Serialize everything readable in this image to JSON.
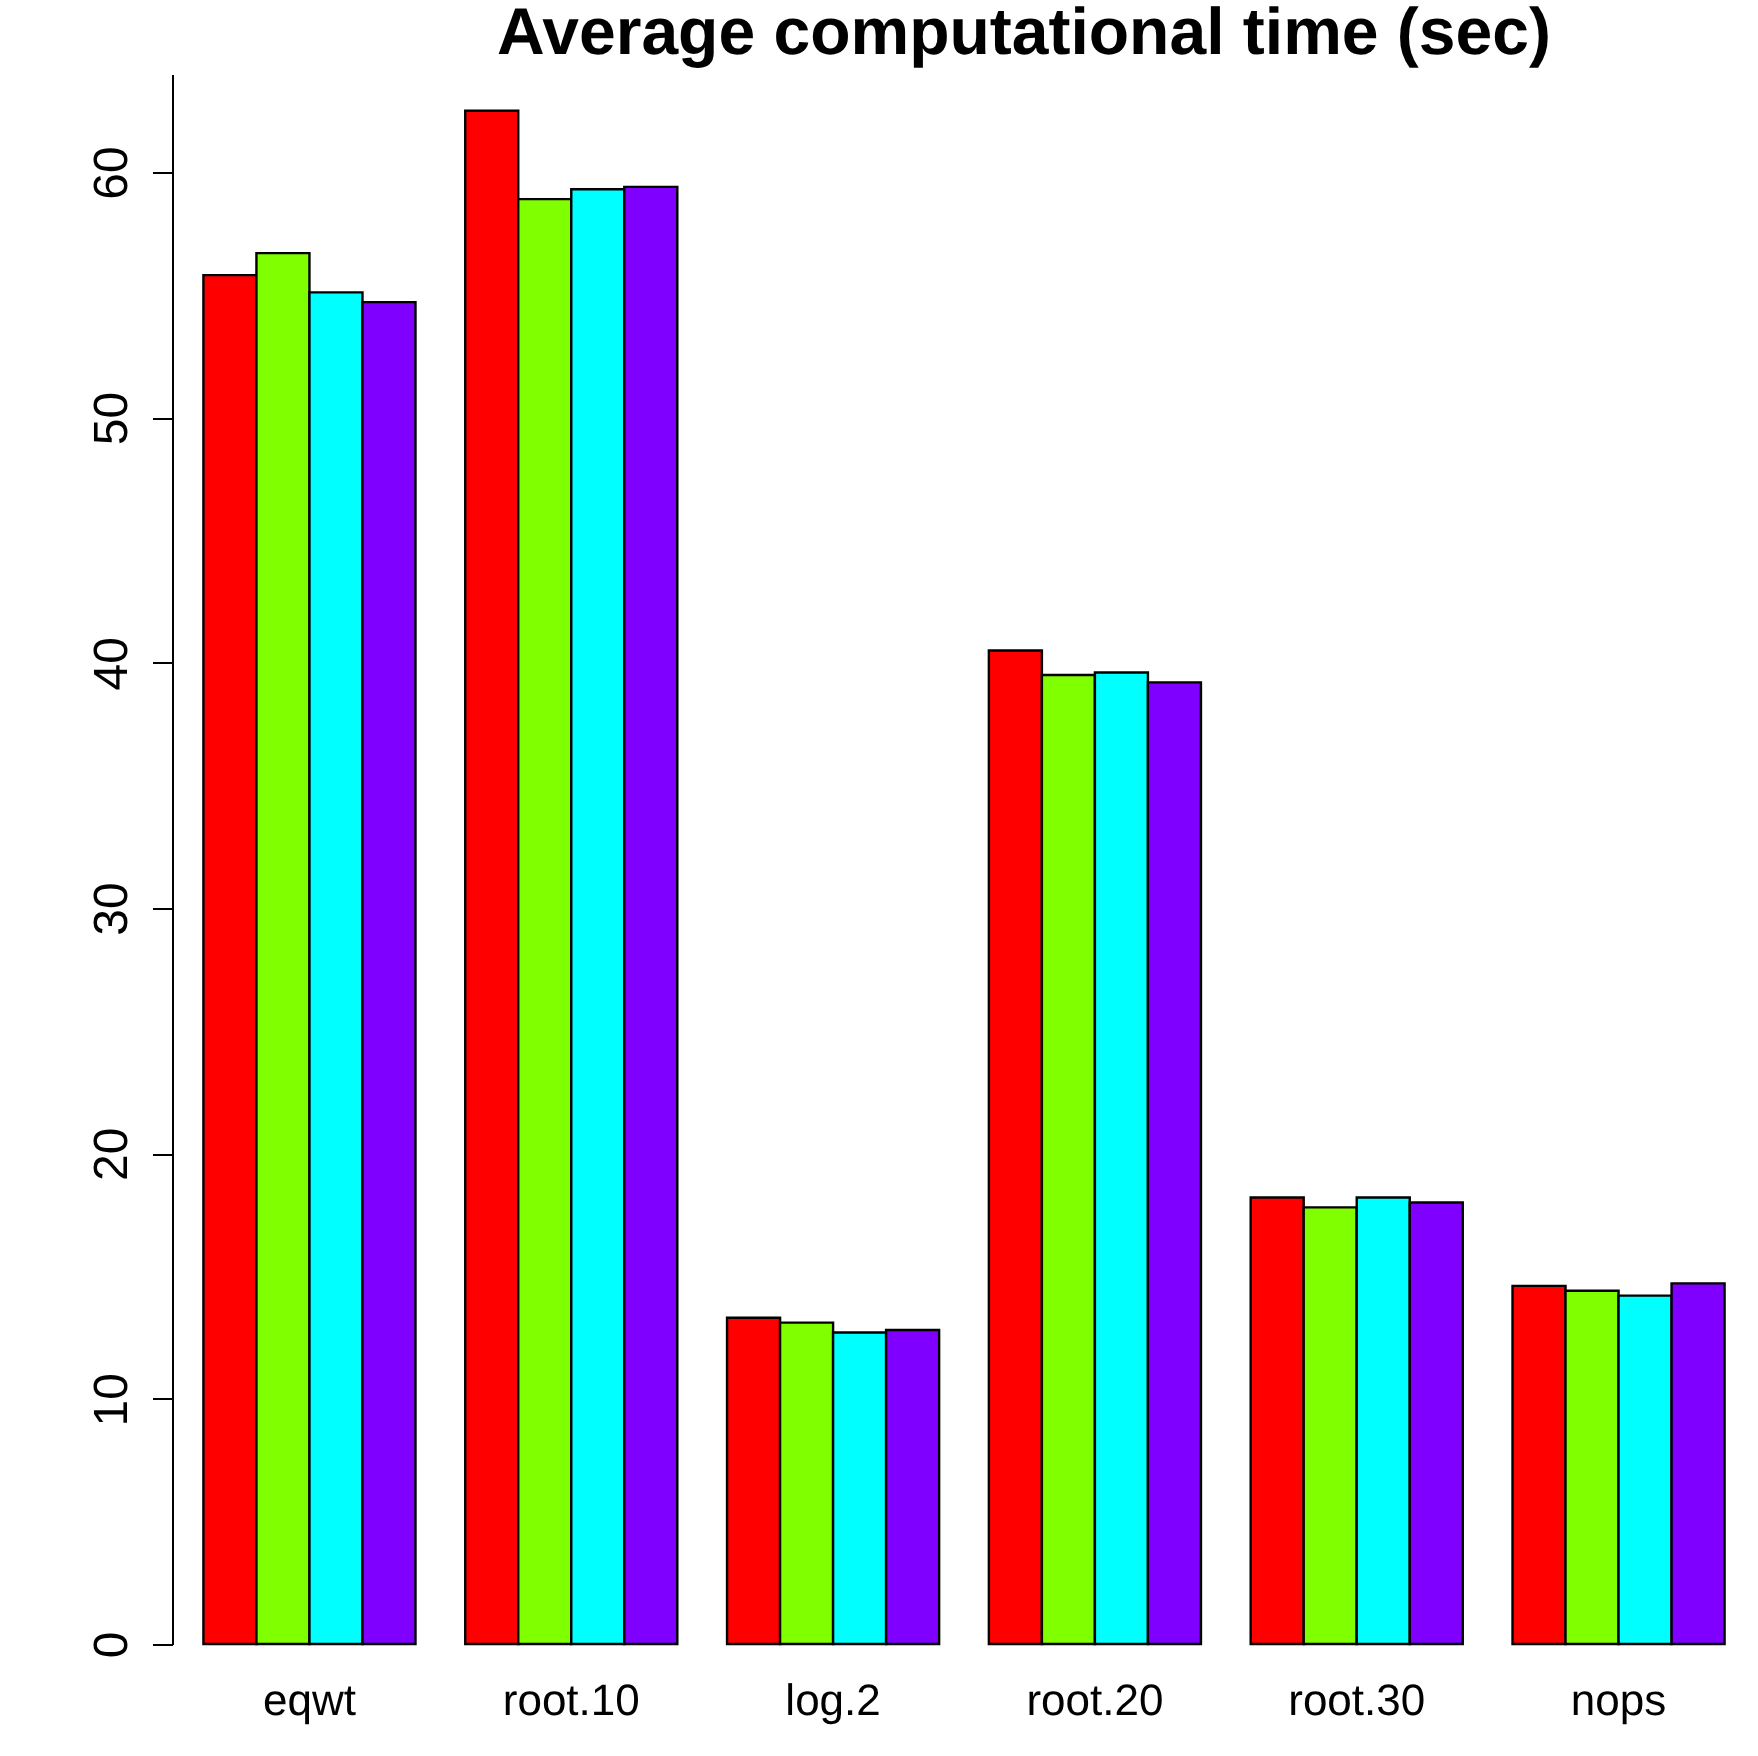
{
  "chart_data": {
    "type": "bar",
    "title": "Average computational time (sec)",
    "categories": [
      "eqwt",
      "root.10",
      "log.2",
      "root.20",
      "root.30",
      "nops"
    ],
    "series": [
      {
        "color": "#ff0000",
        "values": [
          55.8,
          62.5,
          13.3,
          40.5,
          18.2,
          14.6
        ]
      },
      {
        "color": "#80ff00",
        "values": [
          56.7,
          58.9,
          13.1,
          39.5,
          17.8,
          14.4
        ]
      },
      {
        "color": "#00ffff",
        "values": [
          55.1,
          59.3,
          12.7,
          39.6,
          18.2,
          14.2
        ]
      },
      {
        "color": "#8000ff",
        "values": [
          54.7,
          59.4,
          12.8,
          39.2,
          18.0,
          14.7
        ]
      }
    ],
    "ylim": [
      0,
      64
    ],
    "yticks": [
      0,
      10,
      20,
      30,
      40,
      50,
      60
    ],
    "grid": false,
    "legend": false
  }
}
